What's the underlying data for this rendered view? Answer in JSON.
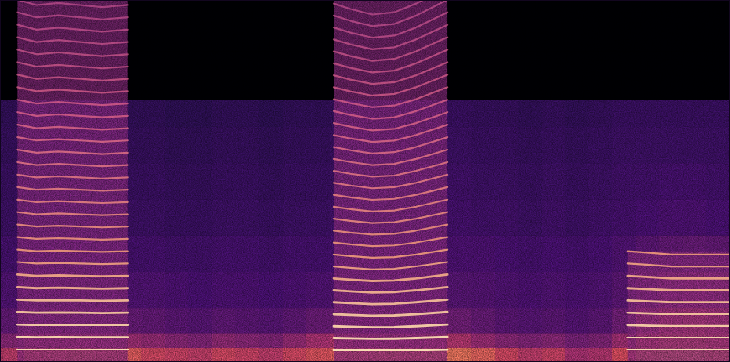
{
  "chart_data": {
    "type": "spectrogram",
    "tick_labels": false,
    "xlim": [
      0,
      100
    ],
    "ylim": [
      0,
      100
    ],
    "zlim": [
      0,
      1
    ],
    "ybins": [
      0,
      4,
      8,
      15,
      25,
      35,
      45,
      55,
      65,
      72.5,
      86,
      100
    ],
    "cells": [
      [
        0.55,
        0.66,
        0.68,
        0.7,
        0.68,
        0.66,
        0.6,
        0.58,
        0.56,
        0.6,
        0.58,
        0.55,
        0.6,
        0.64,
        0.66,
        0.68,
        0.7,
        0.68,
        0.7,
        0.72,
        0.68,
        0.6,
        0.55,
        0.58,
        0.5,
        0.52,
        0.62,
        0.72,
        0.76,
        0.76,
        0.74
      ],
      [
        0.42,
        0.48,
        0.48,
        0.5,
        0.48,
        0.47,
        0.45,
        0.42,
        0.4,
        0.44,
        0.42,
        0.4,
        0.45,
        0.5,
        0.52,
        0.5,
        0.5,
        0.5,
        0.52,
        0.52,
        0.46,
        0.42,
        0.4,
        0.42,
        0.38,
        0.4,
        0.48,
        0.6,
        0.66,
        0.66,
        0.64
      ],
      [
        0.32,
        0.35,
        0.34,
        0.35,
        0.34,
        0.33,
        0.32,
        0.3,
        0.29,
        0.31,
        0.3,
        0.29,
        0.31,
        0.34,
        0.35,
        0.34,
        0.34,
        0.34,
        0.35,
        0.36,
        0.33,
        0.3,
        0.29,
        0.3,
        0.28,
        0.3,
        0.36,
        0.5,
        0.58,
        0.6,
        0.58
      ],
      [
        0.27,
        0.28,
        0.28,
        0.28,
        0.28,
        0.27,
        0.27,
        0.26,
        0.25,
        0.26,
        0.26,
        0.25,
        0.26,
        0.27,
        0.28,
        0.28,
        0.28,
        0.28,
        0.28,
        0.29,
        0.28,
        0.27,
        0.26,
        0.27,
        0.26,
        0.27,
        0.3,
        0.36,
        0.42,
        0.44,
        0.42
      ],
      [
        0.24,
        0.25,
        0.25,
        0.25,
        0.25,
        0.24,
        0.24,
        0.23,
        0.23,
        0.24,
        0.24,
        0.23,
        0.24,
        0.24,
        0.25,
        0.25,
        0.25,
        0.25,
        0.25,
        0.26,
        0.26,
        0.25,
        0.24,
        0.25,
        0.24,
        0.25,
        0.27,
        0.3,
        0.32,
        0.33,
        0.32
      ],
      [
        0.22,
        0.23,
        0.23,
        0.23,
        0.23,
        0.22,
        0.22,
        0.21,
        0.21,
        0.22,
        0.22,
        0.21,
        0.22,
        0.22,
        0.23,
        0.23,
        0.23,
        0.23,
        0.23,
        0.24,
        0.23,
        0.23,
        0.22,
        0.23,
        0.22,
        0.23,
        0.24,
        0.25,
        0.26,
        0.26,
        0.25
      ],
      [
        0.21,
        0.22,
        0.22,
        0.22,
        0.22,
        0.21,
        0.21,
        0.2,
        0.2,
        0.21,
        0.21,
        0.2,
        0.21,
        0.21,
        0.22,
        0.22,
        0.22,
        0.22,
        0.22,
        0.23,
        0.22,
        0.22,
        0.21,
        0.22,
        0.21,
        0.22,
        0.23,
        0.23,
        0.24,
        0.24,
        0.23
      ],
      [
        0.2,
        0.21,
        0.21,
        0.21,
        0.21,
        0.2,
        0.2,
        0.19,
        0.19,
        0.2,
        0.2,
        0.19,
        0.2,
        0.2,
        0.21,
        0.21,
        0.21,
        0.21,
        0.21,
        0.22,
        0.21,
        0.21,
        0.2,
        0.21,
        0.2,
        0.21,
        0.22,
        0.22,
        0.22,
        0.22,
        0.22
      ],
      [
        0.19,
        0.2,
        0.2,
        0.2,
        0.2,
        0.19,
        0.19,
        0.18,
        0.18,
        0.19,
        0.19,
        0.18,
        0.19,
        0.19,
        0.2,
        0.2,
        0.2,
        0.2,
        0.2,
        0.21,
        0.2,
        0.2,
        0.19,
        0.2,
        0.19,
        0.2,
        0.21,
        0.21,
        0.21,
        0.21,
        0.21
      ],
      [
        0,
        0,
        0,
        0,
        0,
        0,
        0,
        0,
        0,
        0,
        0,
        0,
        0,
        0,
        0,
        0,
        0,
        0,
        0,
        0,
        0,
        0,
        0,
        0,
        0,
        0,
        0,
        0,
        0,
        0,
        0
      ],
      [
        0,
        0,
        0,
        0,
        0,
        0,
        0,
        0,
        0,
        0,
        0,
        0,
        0,
        0,
        0,
        0,
        0,
        0,
        0,
        0,
        0,
        0,
        0,
        0,
        0,
        0,
        0,
        0,
        0,
        0,
        0
      ]
    ],
    "voiced": [
      {
        "x": [
          2.4,
          5,
          8,
          11,
          14,
          17.5
        ],
        "f0": [
          3.45,
          3.4,
          3.42,
          3.4,
          3.38,
          3.4
        ],
        "harmonics": 29
      },
      {
        "x": [
          45.7,
          48,
          51,
          54,
          57,
          61.3
        ],
        "f0": [
          3.3,
          3.25,
          3.2,
          3.22,
          3.3,
          3.45
        ],
        "harmonics": 30
      },
      {
        "x": [
          86,
          89,
          92,
          95,
          98,
          100
        ],
        "f0": [
          3.4,
          3.35,
          3.3,
          3.3,
          3.3,
          3.3
        ],
        "harmonics": 9
      }
    ]
  }
}
